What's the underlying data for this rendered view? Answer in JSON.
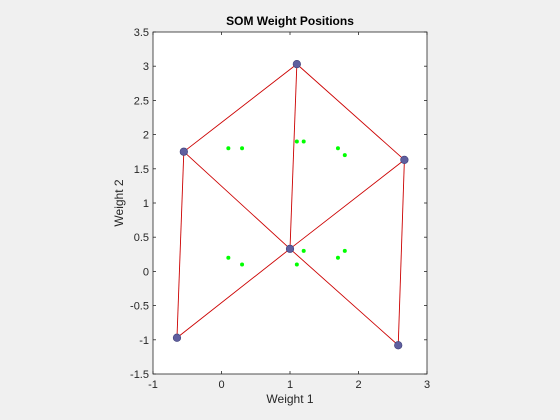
{
  "chart_data": {
    "type": "scatter",
    "title": "SOM Weight Positions",
    "xlabel": "Weight 1",
    "ylabel": "Weight 2",
    "xlim": [
      -1,
      3
    ],
    "ylim": [
      -1.5,
      3.5
    ],
    "xticks": [
      -1,
      0,
      1,
      2,
      3
    ],
    "xtick_labels": [
      "-1",
      "0",
      "1",
      "2",
      "3"
    ],
    "yticks": [
      -1.5,
      -1,
      -0.5,
      0,
      0.5,
      1,
      1.5,
      2,
      2.5,
      3,
      3.5
    ],
    "ytick_labels": [
      "-1.5",
      "-1",
      "-0.5",
      "0",
      "0.5",
      "1",
      "1.5",
      "2",
      "2.5",
      "3",
      "3.5"
    ],
    "grid": false,
    "inputs": {
      "color": "#00ff00",
      "points": [
        [
          0.1,
          1.8
        ],
        [
          0.3,
          1.8
        ],
        [
          1.1,
          1.9
        ],
        [
          1.2,
          1.9
        ],
        [
          1.7,
          1.8
        ],
        [
          1.8,
          1.7
        ],
        [
          0.1,
          0.2
        ],
        [
          0.3,
          0.1
        ],
        [
          1.1,
          0.1
        ],
        [
          1.2,
          0.3
        ],
        [
          1.7,
          0.2
        ],
        [
          1.8,
          0.3
        ]
      ]
    },
    "neurons": {
      "color": "#5f5f9f",
      "points": [
        [
          1.1,
          3.03
        ],
        [
          -0.55,
          1.75
        ],
        [
          2.67,
          1.63
        ],
        [
          1.0,
          0.33
        ],
        [
          -0.65,
          -0.97
        ],
        [
          2.58,
          -1.08
        ]
      ]
    },
    "links": {
      "color": "#cc0000",
      "pairs": [
        [
          0,
          1
        ],
        [
          0,
          2
        ],
        [
          0,
          3
        ],
        [
          1,
          3
        ],
        [
          2,
          3
        ],
        [
          1,
          4
        ],
        [
          3,
          4
        ],
        [
          3,
          5
        ],
        [
          2,
          5
        ]
      ]
    }
  }
}
